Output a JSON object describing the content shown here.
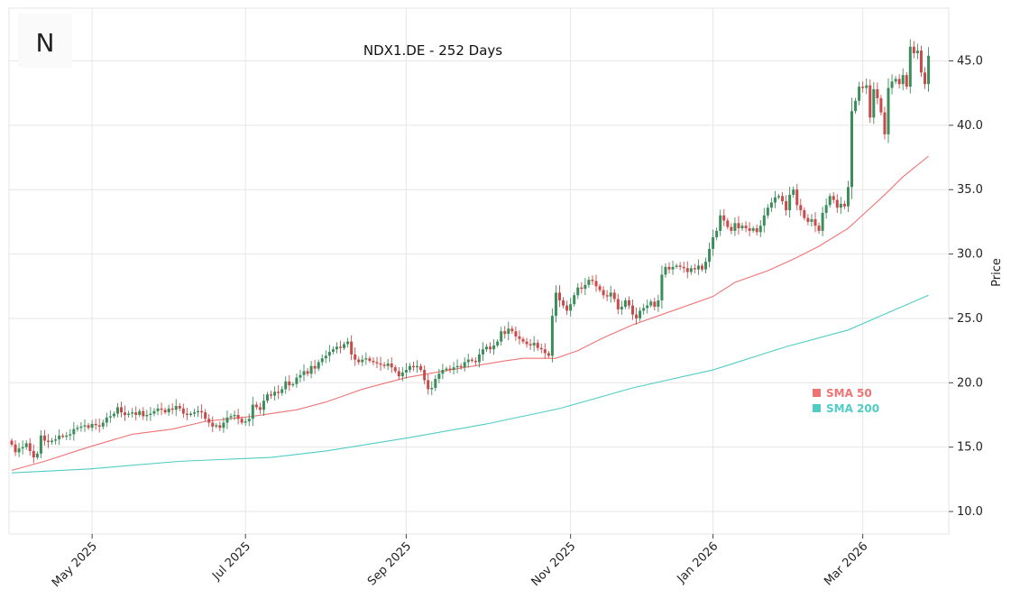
{
  "logo": {
    "letter": "N"
  },
  "chart_data": {
    "type": "candlestick",
    "title": "NDX1.DE - 252 Days",
    "ylabel": "Price",
    "ylim": [
      8.25,
      49.1
    ],
    "grid": true,
    "y_axis_side": "right",
    "yticks": [
      "10.0",
      "15.0",
      "20.0",
      "25.0",
      "30.0",
      "35.0",
      "40.0",
      "45.0"
    ],
    "xticks": [
      {
        "label": "May 2025",
        "day": 22
      },
      {
        "label": "Jul 2025",
        "day": 64
      },
      {
        "label": "Sep 2025",
        "day": 108
      },
      {
        "label": "Nov 2025",
        "day": 153
      },
      {
        "label": "Jan 2026",
        "day": 192
      },
      {
        "label": "Mar 2026",
        "day": 233
      }
    ],
    "colors": {
      "up": "#3c8d5c",
      "down": "#c94a4a",
      "sma50": "#f07373",
      "sma200": "#4fcdc4",
      "grid": "#e6e6e6"
    },
    "close": [
      15.2,
      14.6,
      14.9,
      15.0,
      15.3,
      14.7,
      14.2,
      14.5,
      15.9,
      15.5,
      15.4,
      15.5,
      15.6,
      15.9,
      15.8,
      15.9,
      16.0,
      16.4,
      16.5,
      16.6,
      16.7,
      16.5,
      16.8,
      16.7,
      16.6,
      16.9,
      17.3,
      17.4,
      17.6,
      18.1,
      17.7,
      17.5,
      17.6,
      17.7,
      17.5,
      17.8,
      17.4,
      17.5,
      17.6,
      17.8,
      18.0,
      17.9,
      17.7,
      18.0,
      17.9,
      18.2,
      18.0,
      17.6,
      17.5,
      17.6,
      17.7,
      17.8,
      17.7,
      17.2,
      16.9,
      16.6,
      16.7,
      16.5,
      16.9,
      17.3,
      17.4,
      17.5,
      17.2,
      16.9,
      17.0,
      17.2,
      18.3,
      18.1,
      17.9,
      18.6,
      19.1,
      19.0,
      19.3,
      19.2,
      19.5,
      20.1,
      19.8,
      19.9,
      20.4,
      20.6,
      20.9,
      20.7,
      21.3,
      21.1,
      21.6,
      21.9,
      22.1,
      22.4,
      22.6,
      22.8,
      22.7,
      23.0,
      23.2,
      22.2,
      21.8,
      21.6,
      21.8,
      21.9,
      21.7,
      21.6,
      21.5,
      21.4,
      21.3,
      21.5,
      21.2,
      20.9,
      20.5,
      20.8,
      21.0,
      21.3,
      21.2,
      21.3,
      21.0,
      20.2,
      19.5,
      19.6,
      20.3,
      20.7,
      21.0,
      21.1,
      21.0,
      21.2,
      21.3,
      21.2,
      21.6,
      21.8,
      21.7,
      21.6,
      22.2,
      22.6,
      22.8,
      22.6,
      22.9,
      23.2,
      24.0,
      23.8,
      24.2,
      24.0,
      23.6,
      23.4,
      23.2,
      23.0,
      22.9,
      23.1,
      22.7,
      22.6,
      22.3,
      22.1,
      25.2,
      27.0,
      26.4,
      26.0,
      25.6,
      26.1,
      26.8,
      27.4,
      27.3,
      27.6,
      28.0,
      27.9,
      27.5,
      27.2,
      26.8,
      26.7,
      27.0,
      26.5,
      25.7,
      25.9,
      26.4,
      26.0,
      25.3,
      25.0,
      25.6,
      25.8,
      26.0,
      26.3,
      25.9,
      26.4,
      28.4,
      29.0,
      28.8,
      29.0,
      29.1,
      29.0,
      28.9,
      28.6,
      28.9,
      28.8,
      29.1,
      28.8,
      29.4,
      30.4,
      31.3,
      31.8,
      33.0,
      32.6,
      32.1,
      31.8,
      32.4,
      32.0,
      32.2,
      32.0,
      31.8,
      32.0,
      31.7,
      32.2,
      33.0,
      33.6,
      34.0,
      34.4,
      34.5,
      34.1,
      33.4,
      34.6,
      35.0,
      33.8,
      33.4,
      32.8,
      32.5,
      32.7,
      32.2,
      31.8,
      33.2,
      33.8,
      34.5,
      34.2,
      33.6,
      33.9,
      33.7,
      35.2,
      41.1,
      41.9,
      43.0,
      42.9,
      43.1,
      40.6,
      42.8,
      42.1,
      41.0,
      39.3,
      42.9,
      43.4,
      43.6,
      43.2,
      43.9,
      43.0,
      46.1,
      45.6,
      45.8,
      44.1,
      43.2,
      45.4
    ],
    "open_first": 15.5,
    "series": [
      {
        "name": "SMA 50",
        "points": [
          [
            0,
            13.2
          ],
          [
            9,
            13.9
          ],
          [
            21,
            15.0
          ],
          [
            33,
            16.0
          ],
          [
            44,
            16.4
          ],
          [
            53,
            17.0
          ],
          [
            66,
            17.4
          ],
          [
            78,
            17.9
          ],
          [
            86,
            18.5
          ],
          [
            96,
            19.5
          ],
          [
            108,
            20.4
          ],
          [
            120,
            21.0
          ],
          [
            135,
            21.7
          ],
          [
            140,
            21.9
          ],
          [
            149,
            21.9
          ],
          [
            155,
            22.5
          ],
          [
            162,
            23.5
          ],
          [
            170,
            24.5
          ],
          [
            180,
            25.5
          ],
          [
            192,
            26.7
          ],
          [
            198,
            27.8
          ],
          [
            207,
            28.7
          ],
          [
            214,
            29.6
          ],
          [
            221,
            30.6
          ],
          [
            229,
            32.0
          ],
          [
            234,
            33.3
          ],
          [
            239,
            34.6
          ],
          [
            244,
            36.0
          ],
          [
            251,
            37.6
          ]
        ]
      },
      {
        "name": "SMA 200",
        "points": [
          [
            0,
            13.0
          ],
          [
            21,
            13.3
          ],
          [
            46,
            13.9
          ],
          [
            71,
            14.2
          ],
          [
            86,
            14.7
          ],
          [
            108,
            15.7
          ],
          [
            130,
            16.8
          ],
          [
            150,
            18.0
          ],
          [
            170,
            19.6
          ],
          [
            192,
            21.0
          ],
          [
            212,
            22.8
          ],
          [
            229,
            24.1
          ],
          [
            251,
            26.8
          ]
        ]
      }
    ],
    "legend": {
      "placement": "lower-right inside",
      "items": [
        "SMA 50",
        "SMA 200"
      ]
    }
  }
}
